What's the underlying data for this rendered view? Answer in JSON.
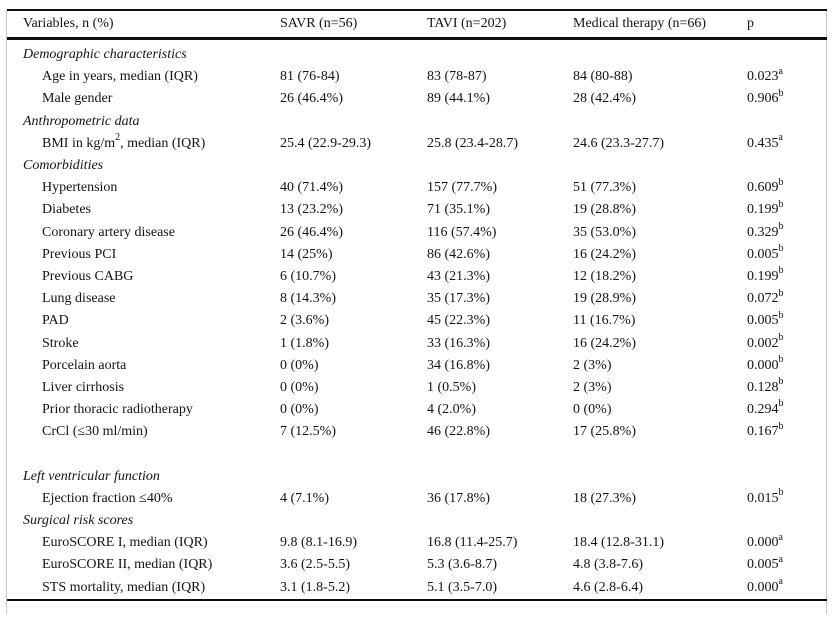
{
  "page": {
    "background": "#ffffff",
    "text_color": "#141414",
    "rule_color": "#101010",
    "frame_color": "#c8c8c8"
  },
  "table": {
    "header": {
      "variables": "Variables, n (%)",
      "savr": "SAVR (n=56)",
      "tavi": "TAVI (n=202)",
      "medical": "Medical therapy (n=66)",
      "p": "p"
    },
    "rows": [
      {
        "type": "section",
        "label": "Demographic characteristics"
      },
      {
        "type": "item",
        "label": "Age in years, median (IQR)",
        "values": [
          "81 (76-84)",
          "83 (78-87)",
          "84 (80-88)"
        ],
        "p": "0.023^{a}"
      },
      {
        "type": "item",
        "label": "Male gender",
        "values": [
          "26 (46.4%)",
          "89 (44.1%)",
          "28 (42.4%)"
        ],
        "p": "0.906^{b}"
      },
      {
        "type": "section",
        "label": "Anthropometric data"
      },
      {
        "type": "item",
        "label": "BMI in kg/m^{2}, median (IQR)",
        "values": [
          "25.4 (22.9-29.3)",
          "25.8 (23.4-28.7)",
          "24.6 (23.3-27.7)"
        ],
        "p": "0.435^{a}"
      },
      {
        "type": "section",
        "label": "Comorbidities"
      },
      {
        "type": "item",
        "label": "Hypertension",
        "values": [
          "40 (71.4%)",
          "157 (77.7%)",
          "51 (77.3%)"
        ],
        "p": "0.609^{b}"
      },
      {
        "type": "item",
        "label": "Diabetes",
        "values": [
          "13 (23.2%)",
          "71 (35.1%)",
          "19 (28.8%)"
        ],
        "p": "0.199^{b}"
      },
      {
        "type": "item",
        "label": "Coronary artery disease",
        "values": [
          "26 (46.4%)",
          "116 (57.4%)",
          "35 (53.0%)"
        ],
        "p": "0.329^{b}"
      },
      {
        "type": "item",
        "label": "Previous PCI",
        "values": [
          "14 (25%)",
          "86 (42.6%)",
          "16 (24.2%)"
        ],
        "p": "0.005^{b}"
      },
      {
        "type": "item",
        "label": "Previous CABG",
        "values": [
          "6 (10.7%)",
          "43 (21.3%)",
          "12 (18.2%)"
        ],
        "p": "0.199^{b}"
      },
      {
        "type": "item",
        "label": "Lung disease",
        "values": [
          "8 (14.3%)",
          "35 (17.3%)",
          "19 (28.9%)"
        ],
        "p": "0.072^{b}"
      },
      {
        "type": "item",
        "label": "PAD",
        "values": [
          "2 (3.6%)",
          "45 (22.3%)",
          "11 (16.7%)"
        ],
        "p": "0.005^{b}"
      },
      {
        "type": "item",
        "label": "Stroke",
        "values": [
          "1 (1.8%)",
          "33 (16.3%)",
          "16 (24.2%)"
        ],
        "p": "0.002^{b}"
      },
      {
        "type": "item",
        "label": "Porcelain aorta",
        "values": [
          "0 (0%)",
          "34 (16.8%)",
          "2 (3%)"
        ],
        "p": "0.000^{b}"
      },
      {
        "type": "item",
        "label": "Liver cirrhosis",
        "values": [
          "0 (0%)",
          "1 (0.5%)",
          "2 (3%)"
        ],
        "p": "0.128^{b}"
      },
      {
        "type": "item",
        "label": "Prior thoracic radiotherapy",
        "values": [
          "0 (0%)",
          "4 (2.0%)",
          "0 (0%)"
        ],
        "p": "0.294^{b}"
      },
      {
        "type": "item",
        "label": "CrCl (≤30 ml/min)",
        "values": [
          "7 (12.5%)",
          "46 (22.8%)",
          "17 (25.8%)"
        ],
        "p": "0.167^{b}"
      },
      {
        "type": "spacer",
        "label": ""
      },
      {
        "type": "section",
        "label": "Left ventricular function"
      },
      {
        "type": "item",
        "label": "Ejection fraction ≤40%",
        "values": [
          "4 (7.1%)",
          "36 (17.8%)",
          "18 (27.3%)"
        ],
        "p": "0.015^{b}"
      },
      {
        "type": "section",
        "label": "Surgical risk scores"
      },
      {
        "type": "item",
        "label": "EuroSCORE I, median (IQR)",
        "values": [
          "9.8 (8.1-16.9)",
          "16.8 (11.4-25.7)",
          "18.4 (12.8-31.1)"
        ],
        "p": "0.000^{a}"
      },
      {
        "type": "item",
        "label": "EuroSCORE II, median (IQR)",
        "values": [
          "3.6 (2.5-5.5)",
          "5.3 (3.6-8.7)",
          "4.8 (3.8-7.6)"
        ],
        "p": "0.005^{a}"
      },
      {
        "type": "item",
        "label": "STS mortality, median (IQR)",
        "values": [
          "3.1 (1.8-5.2)",
          "5.1 (3.5-7.0)",
          "4.6 (2.8-6.4)"
        ],
        "p": "0.000^{a}"
      }
    ]
  }
}
